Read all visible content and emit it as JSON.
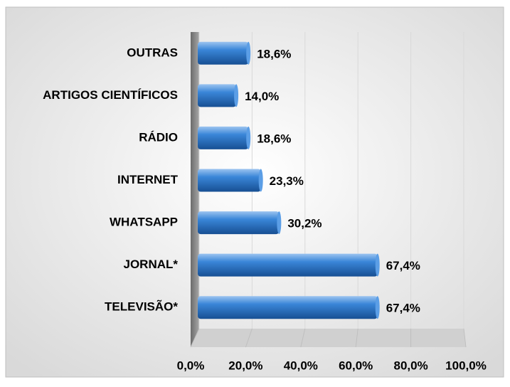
{
  "chart_data": {
    "type": "hbar",
    "categories": [
      "OUTRAS",
      "ARTIGOS CIENTÍFICOS",
      "RÁDIO",
      "INTERNET",
      "WHATSAPP",
      "JORNAL*",
      "TELEVISÃO*"
    ],
    "values": [
      18.6,
      14.0,
      18.6,
      23.3,
      30.2,
      67.4,
      67.4
    ],
    "value_labels": [
      "18,6%",
      "14,0%",
      "18,6%",
      "23,3%",
      "30,2%",
      "67,4%",
      "67,4%"
    ],
    "color": "#2e75c8",
    "xlim": [
      0,
      100
    ],
    "xticks": [
      {
        "value": 0,
        "label": "0,0%"
      },
      {
        "value": 20,
        "label": "20,0%"
      },
      {
        "value": 40,
        "label": "40,0%"
      },
      {
        "value": 60,
        "label": "60,0%"
      },
      {
        "value": 80,
        "label": "80,0%"
      },
      {
        "value": 100,
        "label": "100,0%"
      }
    ],
    "grid": true
  }
}
